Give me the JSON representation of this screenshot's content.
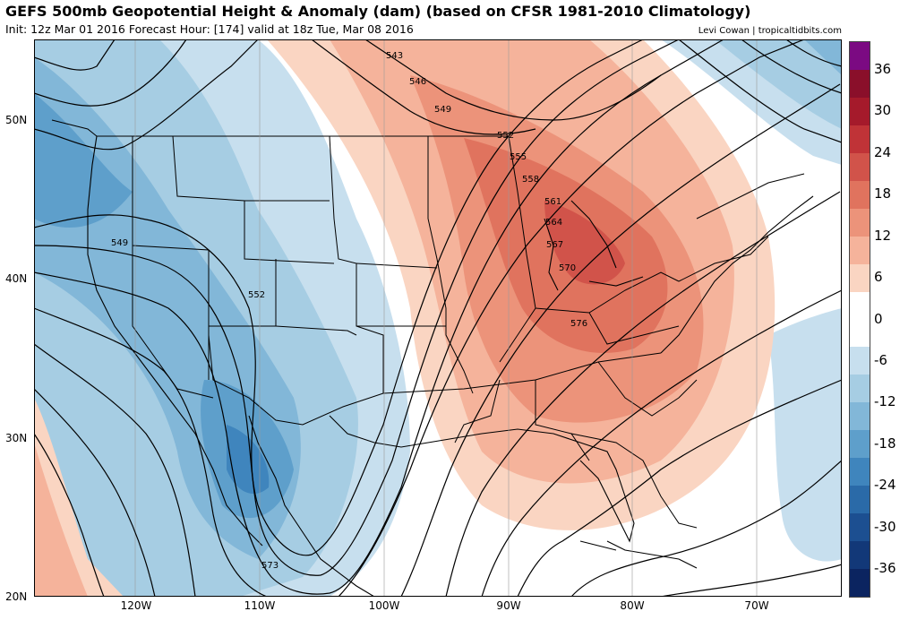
{
  "header": {
    "title": "GEFS 500mb Geopotential Height & Anomaly (dam) (based on CFSR 1981-2010 Climatology)",
    "subtitle": "Init: 12z Mar 01 2016   Forecast Hour: [174]   valid at 18z Tue, Mar 08 2016",
    "credit": "Levi Cowan | tropicaltidbits.com"
  },
  "axes": {
    "lat_labels": [
      "50N",
      "40N",
      "30N",
      "20N"
    ],
    "lon_labels": [
      "120W",
      "110W",
      "100W",
      "90W",
      "80W",
      "70W"
    ]
  },
  "contour_labels": [
    "543",
    "546",
    "549",
    "552",
    "555",
    "558",
    "561",
    "564",
    "567",
    "570",
    "576",
    "549",
    "552",
    "573"
  ],
  "colorbar": {
    "labels": [
      "36",
      "30",
      "24",
      "18",
      "12",
      "6",
      "0",
      "-6",
      "-12",
      "-18",
      "-24",
      "-30",
      "-36"
    ],
    "colors": [
      "#7b0a82",
      "#8a0f2a",
      "#a51a2b",
      "#c03337",
      "#d1534a",
      "#e0735e",
      "#ec937a",
      "#f5b39b",
      "#fad5c2",
      "#ffffff",
      "#ffffff",
      "#c7dfee",
      "#a6cde3",
      "#82b7d8",
      "#5e9fcb",
      "#3f85bd",
      "#2a6aa8",
      "#1c4f91",
      "#123878",
      "#0b2460"
    ]
  },
  "colors": {
    "positive_anomaly": "#e57f63",
    "negative_anomaly": "#6aa5cf",
    "contour": "#000000"
  }
}
